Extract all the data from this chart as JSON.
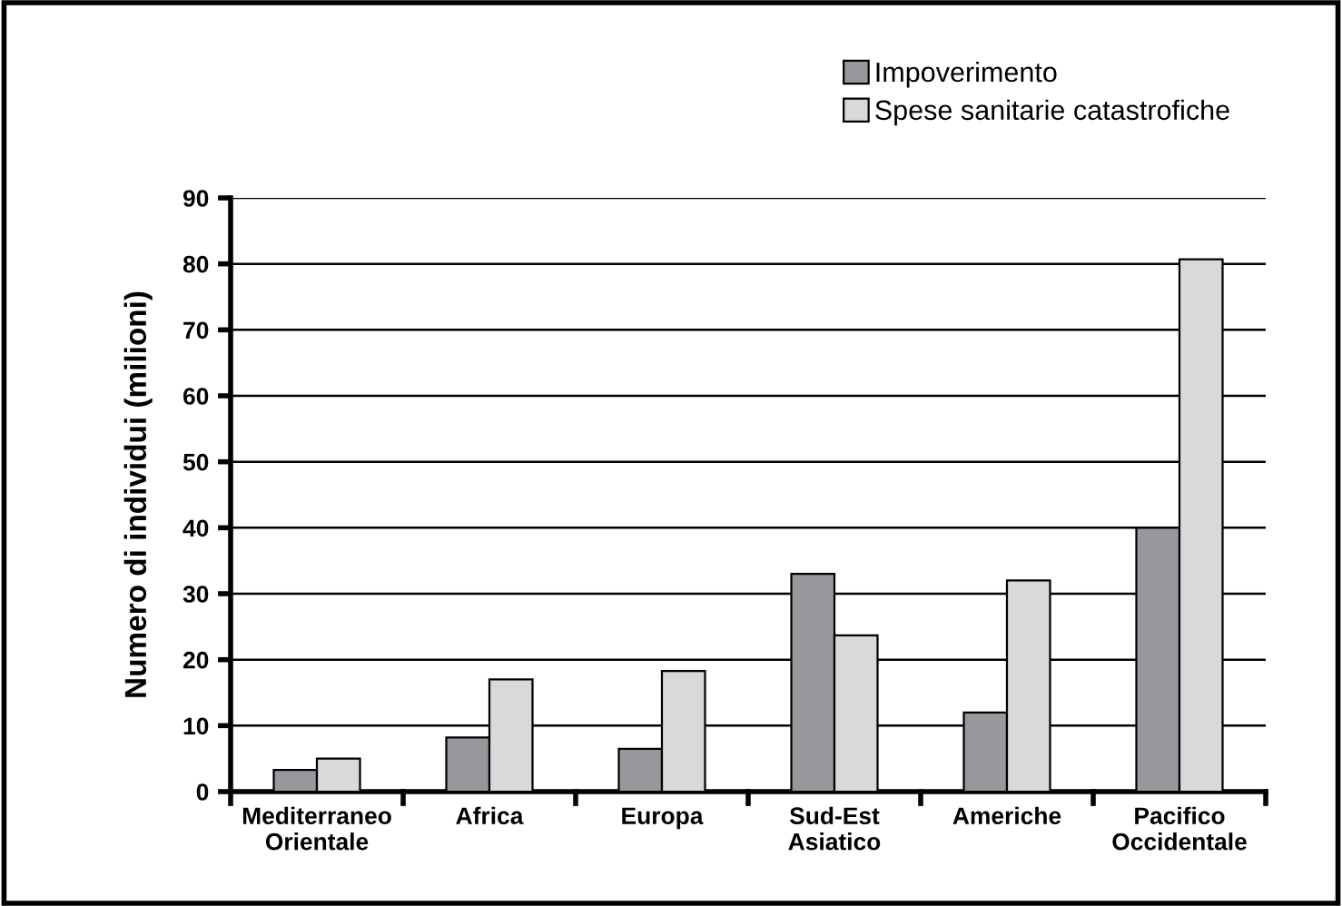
{
  "chart_data": {
    "type": "bar",
    "ylabel": "Numero di individui (milioni)",
    "categories": [
      "Mediterraneo\nOrientale",
      "Africa",
      "Europa",
      "Sud-Est\nAsiatico",
      "Americhe",
      "Pacifico\nOccidentale"
    ],
    "series": [
      {
        "name": "Impoverimento",
        "color": "#98979c",
        "values": [
          3.3,
          8.2,
          6.5,
          33,
          12,
          40
        ]
      },
      {
        "name": "Spese sanitarie catastrofiche",
        "color": "#d8d9db",
        "values": [
          5,
          17,
          18.3,
          23.7,
          32,
          80.7
        ]
      }
    ],
    "ylim": [
      0,
      90
    ],
    "yticks": [
      0,
      10,
      20,
      30,
      40,
      50,
      60,
      70,
      80,
      90
    ],
    "grid": "y",
    "legend": "top right"
  }
}
